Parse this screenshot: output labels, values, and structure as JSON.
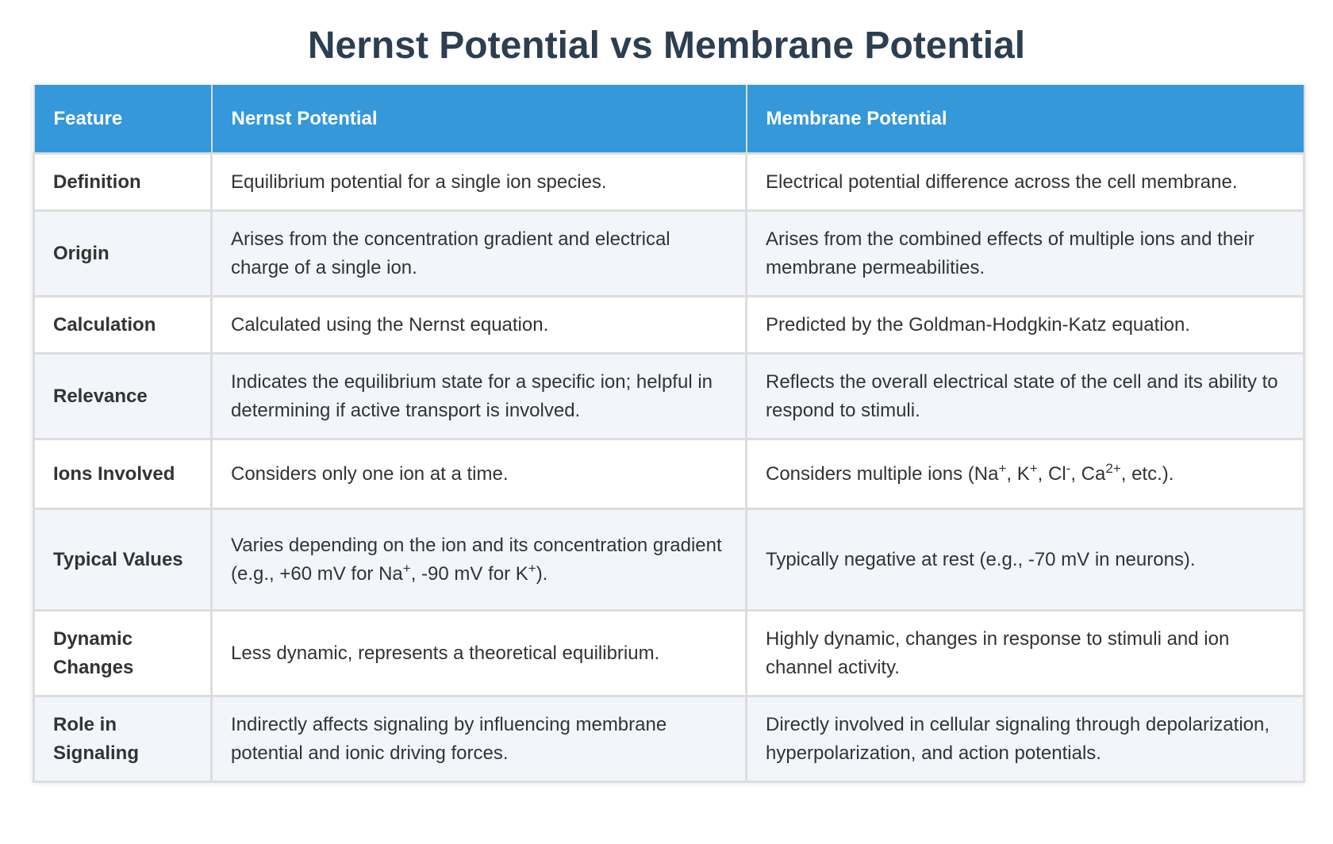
{
  "title": "Nernst Potential vs Membrane Potential",
  "table": {
    "headers": [
      "Feature",
      "Nernst Potential",
      "Membrane Potential"
    ],
    "rows": [
      {
        "feature": "Definition",
        "nernst": "Equilibrium potential for a single ion species.",
        "membrane": "Electrical potential difference across the cell membrane."
      },
      {
        "feature": "Origin",
        "nernst": "Arises from the concentration gradient and electrical charge of a single ion.",
        "membrane": "Arises from the combined effects of multiple ions and their membrane permeabilities."
      },
      {
        "feature": "Calculation",
        "nernst": "Calculated using the Nernst equation.",
        "membrane": "Predicted by the Goldman-Hodgkin-Katz equation."
      },
      {
        "feature": "Relevance",
        "nernst": "Indicates the equilibrium state for a specific ion; helpful in determining if active transport is involved.",
        "membrane": "Reflects the overall electrical state of the cell and its ability to respond to stimuli."
      },
      {
        "feature": "Ions Involved",
        "nernst": "Considers only one ion at a time.",
        "membrane_parts": {
          "t1": "Considers multiple ions (Na",
          "s1": "+",
          "t2": ", K",
          "s2": "+",
          "t3": ", Cl",
          "s3": "-",
          "t4": ", Ca",
          "s4": "2+",
          "t5": ", etc.)."
        }
      },
      {
        "feature": "Typical Values",
        "nernst_parts": {
          "t1": "Varies depending on the ion and its concentration gradient (e.g., +60 mV for Na",
          "s1": "+",
          "t2": ", -90 mV for K",
          "s2": "+",
          "t3": ")."
        },
        "membrane": "Typically negative at rest (e.g., -70 mV in neurons)."
      },
      {
        "feature": "Dynamic Changes",
        "nernst": "Less dynamic, represents a theoretical equilibrium.",
        "membrane": "Highly dynamic, changes in response to stimuli and ion channel activity."
      },
      {
        "feature": "Role in Signaling",
        "nernst": "Indirectly affects signaling by influencing membrane potential and ionic driving forces.",
        "membrane": "Directly involved in cellular signaling through depolarization, hyperpolarization, and action potentials."
      }
    ]
  }
}
